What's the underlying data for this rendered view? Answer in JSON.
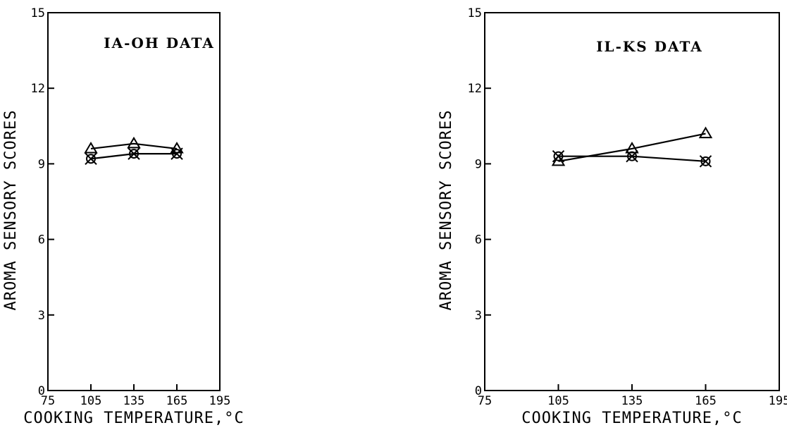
{
  "chart_data": [
    {
      "type": "line",
      "title": "IA-OH DATA",
      "xlabel": "COOKING TEMPERATURE,°C",
      "ylabel": "AROMA SENSORY SCORES",
      "xlim": [
        75,
        195
      ],
      "ylim": [
        0,
        15
      ],
      "xticks": [
        "75",
        "105",
        "135",
        "165",
        "195"
      ],
      "yticks": [
        "0",
        "3",
        "6",
        "9",
        "12",
        "15"
      ],
      "grid": false,
      "x": [
        105,
        135,
        165
      ],
      "series": [
        {
          "marker": "triangle",
          "values": [
            9.6,
            9.8,
            9.6
          ]
        },
        {
          "marker": "x-circle",
          "values": [
            9.2,
            9.4,
            9.4
          ]
        }
      ]
    },
    {
      "type": "line",
      "title": "IL-KS DATA",
      "xlabel": "COOKING TEMPERATURE,°C",
      "ylabel": "AROMA SENSORY SCORES",
      "xlim": [
        75,
        195
      ],
      "ylim": [
        0,
        15
      ],
      "xticks": [
        "75",
        "105",
        "135",
        "165",
        "195"
      ],
      "yticks": [
        "0",
        "3",
        "6",
        "9",
        "12",
        "15"
      ],
      "grid": false,
      "x": [
        105,
        135,
        165
      ],
      "series": [
        {
          "marker": "triangle",
          "values": [
            9.1,
            9.6,
            10.2
          ]
        },
        {
          "marker": "x-circle",
          "values": [
            9.3,
            9.3,
            9.1
          ]
        }
      ]
    }
  ]
}
